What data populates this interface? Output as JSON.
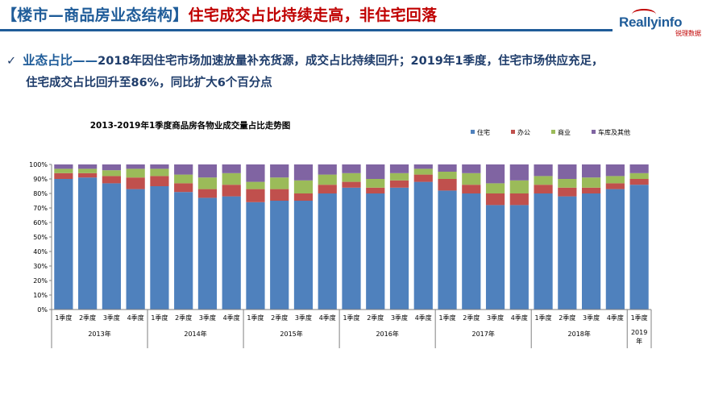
{
  "header": {
    "title_left": "【楼市—商品房业态结构】",
    "title_right": "住宅成交占比持续走高，非住宅回落",
    "logo_brand": "Reallyinfo",
    "logo_sub": "锐理数据",
    "colors": {
      "blue": "#1f5c99",
      "red": "#c00000"
    }
  },
  "bullet": {
    "icon": "check-icon",
    "lead": "业态占比——",
    "line1": "2018年因住宅市场加速放量补充货源，成交占比持续回升；2019年1季度，住宅市场供应充足，",
    "line2": "住宅成交占比回升至86%，同比扩大6个百分点"
  },
  "chart_data": {
    "type": "bar",
    "stacked": true,
    "title": "2013-2019年1季度商品房各物业成交量占比走势图",
    "legend_position": "top-right",
    "ylim": [
      0,
      100
    ],
    "yticks": [
      "0%",
      "10%",
      "20%",
      "30%",
      "40%",
      "50%",
      "60%",
      "70%",
      "80%",
      "90%",
      "100%"
    ],
    "categories": [
      "1季度",
      "2季度",
      "3季度",
      "4季度",
      "1季度",
      "2季度",
      "3季度",
      "4季度",
      "1季度",
      "2季度",
      "3季度",
      "4季度",
      "1季度",
      "2季度",
      "3季度",
      "4季度",
      "1季度",
      "2季度",
      "3季度",
      "4季度",
      "1季度",
      "2季度",
      "3季度",
      "4季度",
      "1季度"
    ],
    "groups": [
      {
        "label": "2013年",
        "count": 4
      },
      {
        "label": "2014年",
        "count": 4
      },
      {
        "label": "2015年",
        "count": 4
      },
      {
        "label": "2016年",
        "count": 4
      },
      {
        "label": "2017年",
        "count": 4
      },
      {
        "label": "2018年",
        "count": 4
      },
      {
        "label": "2019年",
        "count": 1
      }
    ],
    "series": [
      {
        "name": "住宅",
        "color": "#4f81bd",
        "values": [
          90,
          91,
          87,
          83,
          85,
          81,
          77,
          78,
          74,
          75,
          75,
          80,
          84,
          80,
          84,
          88,
          82,
          80,
          72,
          72,
          80,
          78,
          80,
          83,
          86
        ]
      },
      {
        "name": "办公",
        "color": "#c0504d",
        "values": [
          4,
          3,
          5,
          8,
          7,
          6,
          6,
          8,
          9,
          8,
          5,
          6,
          4,
          4,
          5,
          5,
          8,
          6,
          8,
          8,
          6,
          6,
          4,
          4,
          4
        ]
      },
      {
        "name": "商业",
        "color": "#9bbb59",
        "values": [
          3,
          3,
          4,
          6,
          5,
          6,
          8,
          8,
          5,
          8,
          9,
          7,
          6,
          6,
          5,
          4,
          5,
          8,
          7,
          9,
          6,
          6,
          7,
          5,
          4
        ]
      },
      {
        "name": "车库及其他",
        "color": "#8064a2",
        "values": [
          3,
          3,
          4,
          3,
          3,
          7,
          9,
          6,
          12,
          9,
          11,
          7,
          6,
          10,
          6,
          3,
          5,
          6,
          13,
          11,
          8,
          10,
          9,
          8,
          6
        ]
      }
    ]
  }
}
